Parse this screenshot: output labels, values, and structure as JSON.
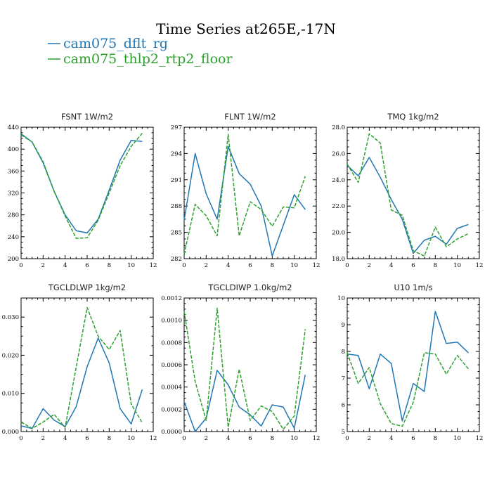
{
  "figure": {
    "title": "Time Series at265E,-17N",
    "legend": [
      {
        "name": "cam075_dflt_rg",
        "color": "#1f77b4",
        "dash": "solid"
      },
      {
        "name": "cam075_thlp2_rtp2_floor",
        "color": "#2ca02c",
        "dash": "dashed"
      }
    ]
  },
  "chart_data": [
    {
      "type": "line",
      "title": "FSNT   1W/m2",
      "x": [
        0,
        1,
        2,
        3,
        4,
        5,
        6,
        7,
        8,
        9,
        10,
        11
      ],
      "xlim": [
        0,
        12
      ],
      "ylim": [
        200,
        440
      ],
      "x_ticks": [
        0,
        2,
        4,
        6,
        8,
        10,
        12
      ],
      "y_ticks": [
        200,
        240,
        280,
        320,
        360,
        400,
        440
      ],
      "y_tick_labels": [
        "200",
        "240",
        "280",
        "320",
        "360",
        "400",
        "440"
      ],
      "series": [
        {
          "name": "cam075_dflt_rg",
          "values": [
            428,
            413,
            375,
            323,
            280,
            251,
            247,
            272,
            325,
            380,
            416,
            414
          ]
        },
        {
          "name": "cam075_thlp2_rtp2_floor",
          "values": [
            426,
            413,
            377,
            323,
            278,
            237,
            238,
            270,
            320,
            370,
            405,
            429
          ]
        }
      ]
    },
    {
      "type": "line",
      "title": "FLNT   1W/m2",
      "x": [
        0,
        1,
        2,
        3,
        4,
        5,
        6,
        7,
        8,
        9,
        10,
        11
      ],
      "xlim": [
        0,
        12
      ],
      "ylim": [
        282,
        297
      ],
      "x_ticks": [
        0,
        2,
        4,
        6,
        8,
        10,
        12
      ],
      "y_ticks": [
        282,
        285,
        288,
        291,
        294,
        297
      ],
      "y_tick_labels": [
        "282",
        "285",
        "288",
        "291",
        "294",
        "297"
      ],
      "series": [
        {
          "name": "cam075_dflt_rg",
          "values": [
            286.4,
            294.0,
            289.4,
            286.5,
            294.8,
            291.7,
            290.5,
            288.0,
            282.3,
            285.8,
            289.3,
            287.6
          ]
        },
        {
          "name": "cam075_thlp2_rtp2_floor",
          "values": [
            282.5,
            288.2,
            286.9,
            284.6,
            296.2,
            284.6,
            288.5,
            287.6,
            285.7,
            287.9,
            287.8,
            291.4
          ]
        }
      ]
    },
    {
      "type": "line",
      "title": "TMQ   1kg/m2",
      "x": [
        0,
        1,
        2,
        3,
        4,
        5,
        6,
        7,
        8,
        9,
        10,
        11
      ],
      "xlim": [
        0,
        12
      ],
      "ylim": [
        18,
        28
      ],
      "x_ticks": [
        0,
        2,
        4,
        6,
        8,
        10,
        12
      ],
      "y_ticks": [
        18,
        20,
        22,
        24,
        26,
        28
      ],
      "y_tick_labels": [
        "18.0",
        "20.0",
        "22.0",
        "24.0",
        "26.0",
        "28.0"
      ],
      "series": [
        {
          "name": "cam075_dflt_rg",
          "values": [
            25.1,
            24.3,
            25.7,
            24.2,
            22.5,
            21.0,
            18.4,
            19.4,
            19.7,
            19.1,
            20.3,
            20.6
          ]
        },
        {
          "name": "cam075_thlp2_rtp2_floor",
          "values": [
            25.2,
            23.8,
            27.5,
            26.8,
            21.7,
            21.3,
            18.6,
            18.2,
            20.4,
            18.9,
            19.5,
            19.9
          ]
        }
      ]
    },
    {
      "type": "line",
      "title": "TGCLDLWP   1kg/m2",
      "x": [
        0,
        1,
        2,
        3,
        4,
        5,
        6,
        7,
        8,
        9,
        10,
        11
      ],
      "xlim": [
        0,
        12
      ],
      "ylim": [
        0,
        0.035
      ],
      "x_ticks": [
        0,
        2,
        4,
        6,
        8,
        10,
        12
      ],
      "y_ticks": [
        0,
        0.01,
        0.02,
        0.03
      ],
      "y_tick_labels": [
        "0.000",
        "0.010",
        "0.020",
        "0.030"
      ],
      "series": [
        {
          "name": "cam075_dflt_rg",
          "values": [
            0.0015,
            0.0008,
            0.006,
            0.003,
            0.0013,
            0.0065,
            0.017,
            0.0245,
            0.018,
            0.006,
            0.002,
            0.011
          ]
        },
        {
          "name": "cam075_thlp2_rtp2_floor",
          "values": [
            0.0025,
            0.0008,
            0.0025,
            0.0045,
            0.0011,
            0.0168,
            0.0325,
            0.025,
            0.0215,
            0.0265,
            0.0072,
            0.0023
          ]
        }
      ]
    },
    {
      "type": "line",
      "title": "TGCLDIWP   1.0kg/m2",
      "x": [
        0,
        1,
        2,
        3,
        4,
        5,
        6,
        7,
        8,
        9,
        10,
        11
      ],
      "xlim": [
        0,
        12
      ],
      "ylim": [
        0,
        0.0012
      ],
      "x_ticks": [
        0,
        2,
        4,
        6,
        8,
        10,
        12
      ],
      "y_ticks": [
        0,
        0.0002,
        0.0004,
        0.0006,
        0.0008,
        0.001,
        0.0012
      ],
      "y_tick_labels": [
        "0.0000",
        "0.0002",
        "0.0004",
        "0.0006",
        "0.0008",
        "0.0010",
        "0.0012"
      ],
      "series": [
        {
          "name": "cam075_dflt_rg",
          "values": [
            0.00027,
            0.0,
            0.00012,
            0.00055,
            0.00042,
            0.00022,
            0.00015,
            5e-05,
            0.00024,
            0.00022,
            3e-05,
            0.00051
          ]
        },
        {
          "name": "cam075_thlp2_rtp2_floor",
          "values": [
            0.00108,
            0.00045,
            0.0001,
            0.00111,
            4e-05,
            0.00056,
            0.0001,
            0.00023,
            0.00018,
            2e-05,
            0.00014,
            0.00092
          ]
        }
      ]
    },
    {
      "type": "line",
      "title": "U10   1m/s",
      "x": [
        0,
        1,
        2,
        3,
        4,
        5,
        6,
        7,
        8,
        9,
        10,
        11
      ],
      "xlim": [
        0,
        12
      ],
      "ylim": [
        5,
        10
      ],
      "x_ticks": [
        0,
        2,
        4,
        6,
        8,
        10,
        12
      ],
      "y_ticks": [
        5,
        6,
        7,
        8,
        9,
        10
      ],
      "y_tick_labels": [
        "5",
        "6",
        "7",
        "8",
        "9",
        "10"
      ],
      "series": [
        {
          "name": "cam075_dflt_rg",
          "values": [
            7.9,
            7.85,
            6.6,
            7.9,
            7.55,
            5.4,
            6.8,
            6.5,
            9.5,
            8.3,
            8.35,
            7.95
          ]
        },
        {
          "name": "cam075_thlp2_rtp2_floor",
          "values": [
            7.95,
            6.8,
            7.4,
            6.05,
            5.3,
            5.2,
            6.1,
            7.95,
            7.9,
            7.15,
            7.85,
            7.35
          ]
        }
      ]
    }
  ]
}
